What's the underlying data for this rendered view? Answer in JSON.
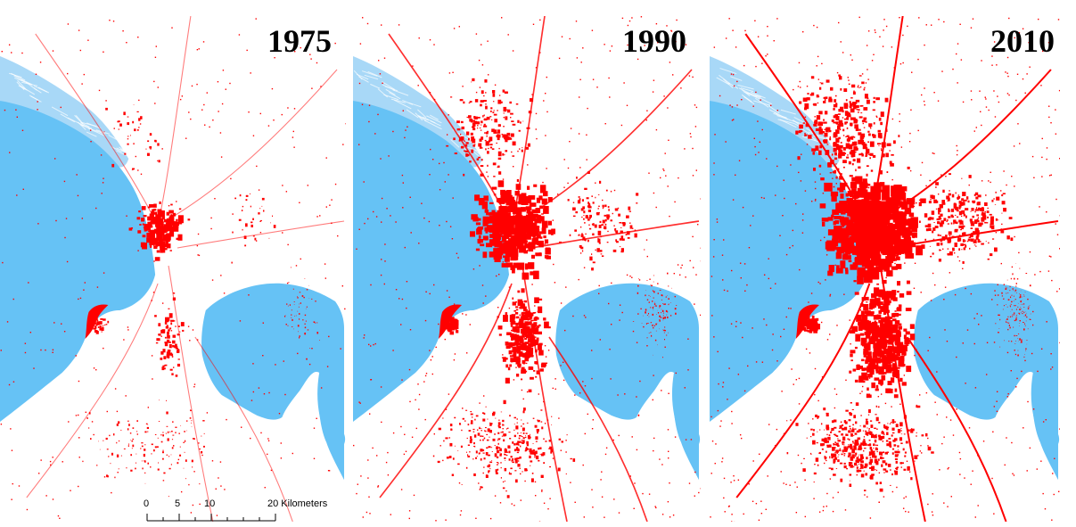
{
  "panels": [
    {
      "year": "1975",
      "density": 0.35
    },
    {
      "year": "1990",
      "density": 0.75
    },
    {
      "year": "2010",
      "density": 1.0
    }
  ],
  "scalebar": {
    "ticks": [
      "0",
      "5",
      "10",
      "20 Kilometers"
    ]
  },
  "colors": {
    "water": "#66c2f5",
    "urban": "#ff0000",
    "land": "#ffffff",
    "wetland": "#a8d8f7"
  }
}
